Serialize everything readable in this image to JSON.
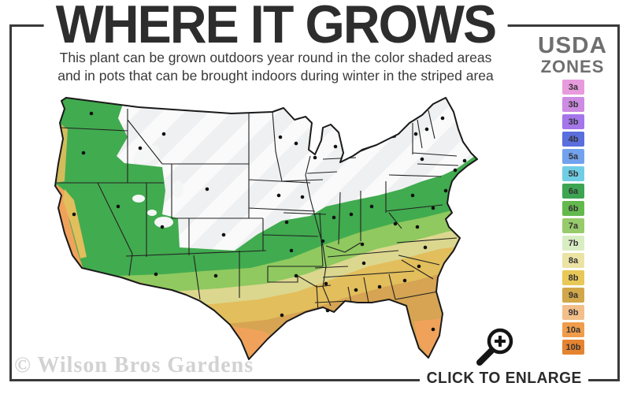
{
  "header": {
    "title": "WHERE IT GROWS",
    "subtitle_line1": "This plant can be grown outdoors year round in the color shaded areas",
    "subtitle_line2": "and in pots that can be brought indoors during winter in the striped area"
  },
  "legend": {
    "title_top": "USDA",
    "title_bottom": "ZONES",
    "zones": [
      {
        "label": "3a",
        "color": "#E89BDC"
      },
      {
        "label": "3b",
        "color": "#CD8BE2"
      },
      {
        "label": "3b",
        "color": "#A476EA"
      },
      {
        "label": "4b",
        "color": "#5A6EDD"
      },
      {
        "label": "5a",
        "color": "#72A2EE"
      },
      {
        "label": "5b",
        "color": "#70CEE4"
      },
      {
        "label": "6a",
        "color": "#3DA552"
      },
      {
        "label": "6b",
        "color": "#64B94E"
      },
      {
        "label": "7a",
        "color": "#97CB6B"
      },
      {
        "label": "7b",
        "color": "#D9EDC3"
      },
      {
        "label": "8a",
        "color": "#EBE3A4"
      },
      {
        "label": "8b",
        "color": "#E8C857"
      },
      {
        "label": "9a",
        "color": "#D2A74A"
      },
      {
        "label": "9b",
        "color": "#F2BF8B"
      },
      {
        "label": "10a",
        "color": "#F09D4B"
      },
      {
        "label": "10b",
        "color": "#E5842F"
      }
    ]
  },
  "map": {
    "colors": {
      "base_white": "#EFF0F1",
      "stripe": "#FAFAFB",
      "mountain_white": "#F5F6F6",
      "green": "#41AB4F",
      "light_green": "#8FC95F",
      "khaki": "#DCD78F",
      "gold": "#E2BE5C",
      "tan": "#D6A452",
      "orange": "#F0A25B",
      "lake": "#FFFFFF",
      "outline": "#1A1A1A",
      "stateline": "#222222",
      "dot": "#111111"
    }
  },
  "footer": {
    "watermark": "© Wilson Bros Gardens",
    "enlarge_label": "CLICK TO ENLARGE"
  }
}
